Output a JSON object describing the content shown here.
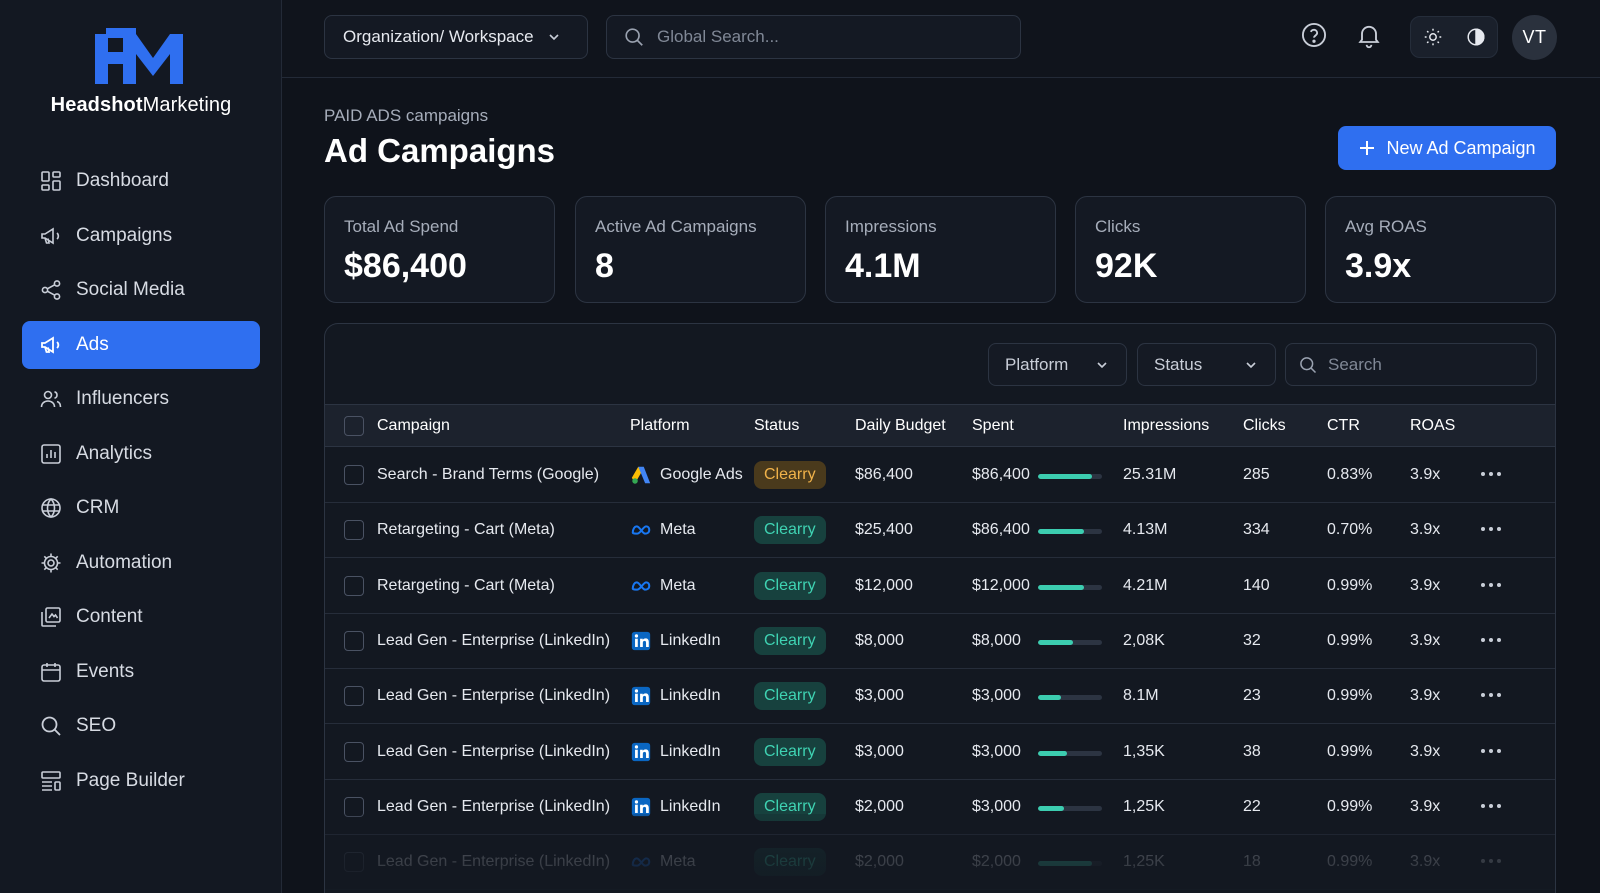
{
  "app": {
    "logo_bold": "Headshot",
    "logo_regular": "Marketing",
    "logo_mark": "HM"
  },
  "colors": {
    "accent": "#2f6ff0",
    "success_badge": "#3fd3b3",
    "warning_badge": "#f0b24a",
    "progress": "#3ccdb0"
  },
  "sidebar": {
    "items": [
      {
        "label": "Dashboard",
        "icon": "dashboard-icon"
      },
      {
        "label": "Campaigns",
        "icon": "megaphone-icon"
      },
      {
        "label": "Social Media",
        "icon": "share-icon"
      },
      {
        "label": "Ads",
        "icon": "megaphone-icon",
        "active": true
      },
      {
        "label": "Influencers",
        "icon": "users-icon"
      },
      {
        "label": "Analytics",
        "icon": "bar-chart-icon"
      },
      {
        "label": "CRM",
        "icon": "globe-icon"
      },
      {
        "label": "Automation",
        "icon": "gear-icon"
      },
      {
        "label": "Content",
        "icon": "content-icon"
      },
      {
        "label": "Events",
        "icon": "calendar-icon"
      },
      {
        "label": "SEO",
        "icon": "search-icon"
      },
      {
        "label": "Page Builder",
        "icon": "layout-icon"
      }
    ]
  },
  "topbar": {
    "workspace_label": "Organization/ Workspace",
    "search_placeholder": "Global Search...",
    "avatar_initials": "VT"
  },
  "main": {
    "breadcrumb": "PAID ADS campaigns",
    "title": "Ad Campaigns",
    "new_button_label": "New Ad Campaign",
    "stats": [
      {
        "label": "Total Ad Spend",
        "value": "$86,400"
      },
      {
        "label": "Active Ad Campaigns",
        "value": "8"
      },
      {
        "label": "Impressions",
        "value": "4.1M"
      },
      {
        "label": "Clicks",
        "value": "92K"
      },
      {
        "label": "Avg ROAS",
        "value": "3.9x"
      }
    ]
  },
  "table": {
    "filters": {
      "platform_label": "Platform",
      "status_label": "Status",
      "search_placeholder": "Search"
    },
    "columns": [
      "Campaign",
      "Platform",
      "Status",
      "Daily Budget",
      "Spent",
      "Impressions",
      "Clicks",
      "CTR",
      "ROAS"
    ],
    "rows": [
      {
        "campaign": "Search - Brand Terms (Google)",
        "platform": "Google Ads",
        "platform_icon": "google-ads-icon",
        "status": "Clearry",
        "status_tone": "warn",
        "budget": "$86,400",
        "spent": "$86,400",
        "spent_progress": 0.85,
        "impressions": "25.31M",
        "clicks": "285",
        "ctr": "0.83%",
        "roas": "3.9x"
      },
      {
        "campaign": "Retargeting - Cart (Meta)",
        "platform": "Meta",
        "platform_icon": "meta-icon",
        "status": "Clearry",
        "status_tone": "ok",
        "budget": "$25,400",
        "spent": "$86,400",
        "spent_progress": 0.72,
        "impressions": "4.13M",
        "clicks": "334",
        "ctr": "0.70%",
        "roas": "3.9x"
      },
      {
        "campaign": "Retargeting - Cart (Meta)",
        "platform": "Meta",
        "platform_icon": "meta-icon",
        "status": "Clearry",
        "status_tone": "ok",
        "budget": "$12,000",
        "spent": "$12,000",
        "spent_progress": 0.72,
        "impressions": "4.21M",
        "clicks": "140",
        "ctr": "0.99%",
        "roas": "3.9x"
      },
      {
        "campaign": "Lead Gen - Enterprise (LinkedIn)",
        "platform": "LinkedIn",
        "platform_icon": "linkedin-icon",
        "status": "Clearry",
        "status_tone": "ok",
        "budget": "$8,000",
        "spent": "$8,000",
        "spent_progress": 0.55,
        "impressions": "2,08K",
        "clicks": "32",
        "ctr": "0.99%",
        "roas": "3.9x"
      },
      {
        "campaign": "Lead Gen - Enterprise (LinkedIn)",
        "platform": "LinkedIn",
        "platform_icon": "linkedin-icon",
        "status": "Clearry",
        "status_tone": "ok",
        "budget": "$3,000",
        "spent": "$3,000",
        "spent_progress": 0.36,
        "impressions": "8.1M",
        "clicks": "23",
        "ctr": "0.99%",
        "roas": "3.9x"
      },
      {
        "campaign": "Lead Gen - Enterprise (LinkedIn)",
        "platform": "LinkedIn",
        "platform_icon": "linkedin-icon",
        "status": "Clearry",
        "status_tone": "ok",
        "budget": "$3,000",
        "spent": "$3,000",
        "spent_progress": 0.46,
        "impressions": "1,35K",
        "clicks": "38",
        "ctr": "0.99%",
        "roas": "3.9x"
      },
      {
        "campaign": "Lead Gen - Enterprise (LinkedIn)",
        "platform": "LinkedIn",
        "platform_icon": "linkedin-icon",
        "status": "Clearry",
        "status_tone": "ok",
        "budget": "$2,000",
        "spent": "$3,000",
        "spent_progress": 0.4,
        "impressions": "1,25K",
        "clicks": "22",
        "ctr": "0.99%",
        "roas": "3.9x"
      },
      {
        "campaign": "Lead Gen - Enterprise (LinkedIn)",
        "platform": "Meta",
        "platform_icon": "meta-icon",
        "status": "Clearry",
        "status_tone": "ok",
        "budget": "$2,000",
        "spent": "$2,000",
        "spent_progress": 0.85,
        "impressions": "1,25K",
        "clicks": "18",
        "ctr": "0.99%",
        "roas": "3.9x"
      }
    ]
  }
}
